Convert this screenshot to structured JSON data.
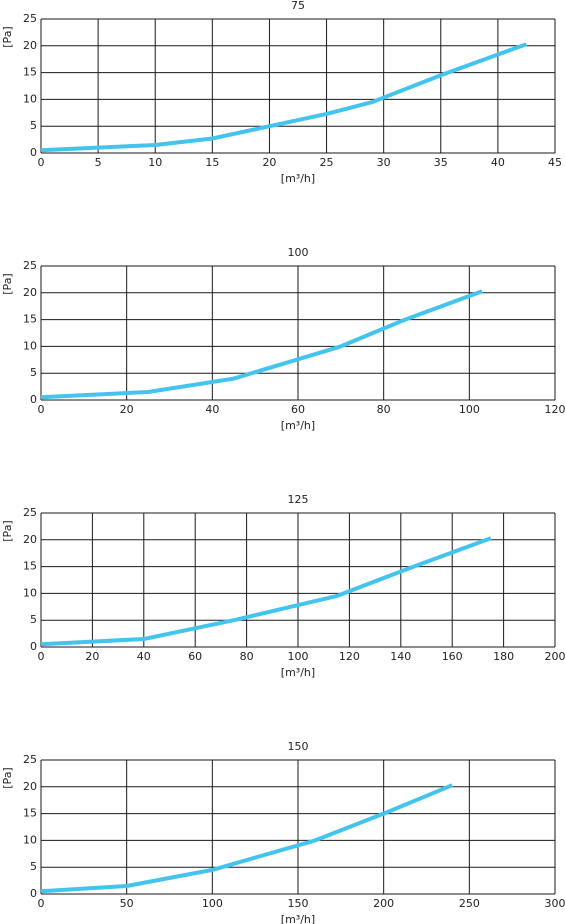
{
  "chart_data": [
    {
      "type": "line",
      "title": "75",
      "xlabel": "[m³/h]",
      "ylabel": "[Pa]",
      "color": "#42c4ef",
      "grid": true,
      "x": [
        0,
        10,
        15,
        20,
        25,
        29,
        35,
        42.5
      ],
      "values": [
        0.5,
        1.5,
        2.7,
        5,
        7.3,
        9.5,
        14.5,
        20.3
      ],
      "xlim": [
        0,
        45
      ],
      "xticks": [
        0,
        5,
        10,
        15,
        20,
        25,
        30,
        35,
        40,
        45
      ],
      "ylim": [
        0,
        25
      ],
      "yticks": [
        0,
        5,
        10,
        15,
        20,
        25
      ]
    },
    {
      "type": "line",
      "title": "100",
      "xlabel": "[m³/h]",
      "ylabel": "[Pa]",
      "color": "#42c4ef",
      "grid": true,
      "x": [
        0,
        25,
        45,
        70,
        85,
        103
      ],
      "values": [
        0.5,
        1.5,
        4,
        10,
        15,
        20.3
      ],
      "xlim": [
        0,
        120
      ],
      "xticks": [
        0,
        20,
        40,
        60,
        80,
        100,
        120
      ],
      "ylim": [
        0,
        25
      ],
      "yticks": [
        0,
        5,
        10,
        15,
        20,
        25
      ]
    },
    {
      "type": "line",
      "title": "125",
      "xlabel": "[m³/h]",
      "ylabel": "[Pa]",
      "color": "#42c4ef",
      "grid": true,
      "x": [
        0,
        40,
        75,
        115,
        145,
        175
      ],
      "values": [
        0.5,
        1.5,
        5,
        9.5,
        15,
        20.3
      ],
      "xlim": [
        0,
        200
      ],
      "xticks": [
        0,
        20,
        40,
        60,
        80,
        100,
        120,
        140,
        160,
        180,
        200
      ],
      "ylim": [
        0,
        25
      ],
      "yticks": [
        0,
        5,
        10,
        15,
        20,
        25
      ]
    },
    {
      "type": "line",
      "title": "150",
      "xlabel": "[m³/h]",
      "ylabel": "[Pa]",
      "color": "#42c4ef",
      "grid": true,
      "x": [
        0,
        50,
        100,
        160,
        200,
        240
      ],
      "values": [
        0.5,
        1.5,
        4.5,
        10,
        15,
        20.3
      ],
      "xlim": [
        0,
        300
      ],
      "xticks": [
        0,
        50,
        100,
        150,
        200,
        250,
        300
      ],
      "ylim": [
        0,
        25
      ],
      "yticks": [
        0,
        5,
        10,
        15,
        20,
        25
      ]
    }
  ]
}
